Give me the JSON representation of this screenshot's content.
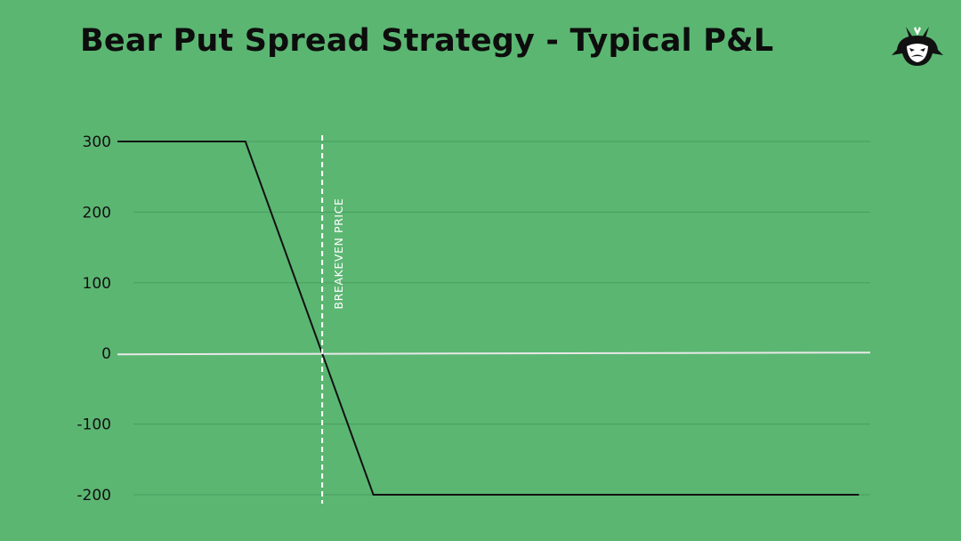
{
  "title": "Bear Put Spread Strategy - Typical P&L",
  "logo": {
    "icon": "samurai-logo-icon"
  },
  "colors": {
    "background": "#5bb672",
    "line": "#111111",
    "zero_line": "#e8e8e8",
    "breakeven": "#ffffff",
    "grid": "#4a9d5f"
  },
  "chart_data": {
    "type": "line",
    "title": "Bear Put Spread Strategy - Typical P&L",
    "xlabel": "",
    "ylabel": "",
    "yticks": [
      "300",
      "200",
      "100",
      "0",
      "-100",
      "-200"
    ],
    "ytick_values": [
      300,
      200,
      100,
      0,
      -100,
      -200
    ],
    "ylim": [
      -200,
      300
    ],
    "xlim": [
      0,
      100
    ],
    "grid": true,
    "series": [
      {
        "x": [
          0,
          17,
          27.2,
          34,
          98.5
        ],
        "y": [
          300,
          300,
          0,
          -200,
          -200
        ]
      }
    ],
    "annotations": [
      {
        "text": "BREAKEVEN PRICE",
        "x": 27.2
      }
    ]
  }
}
